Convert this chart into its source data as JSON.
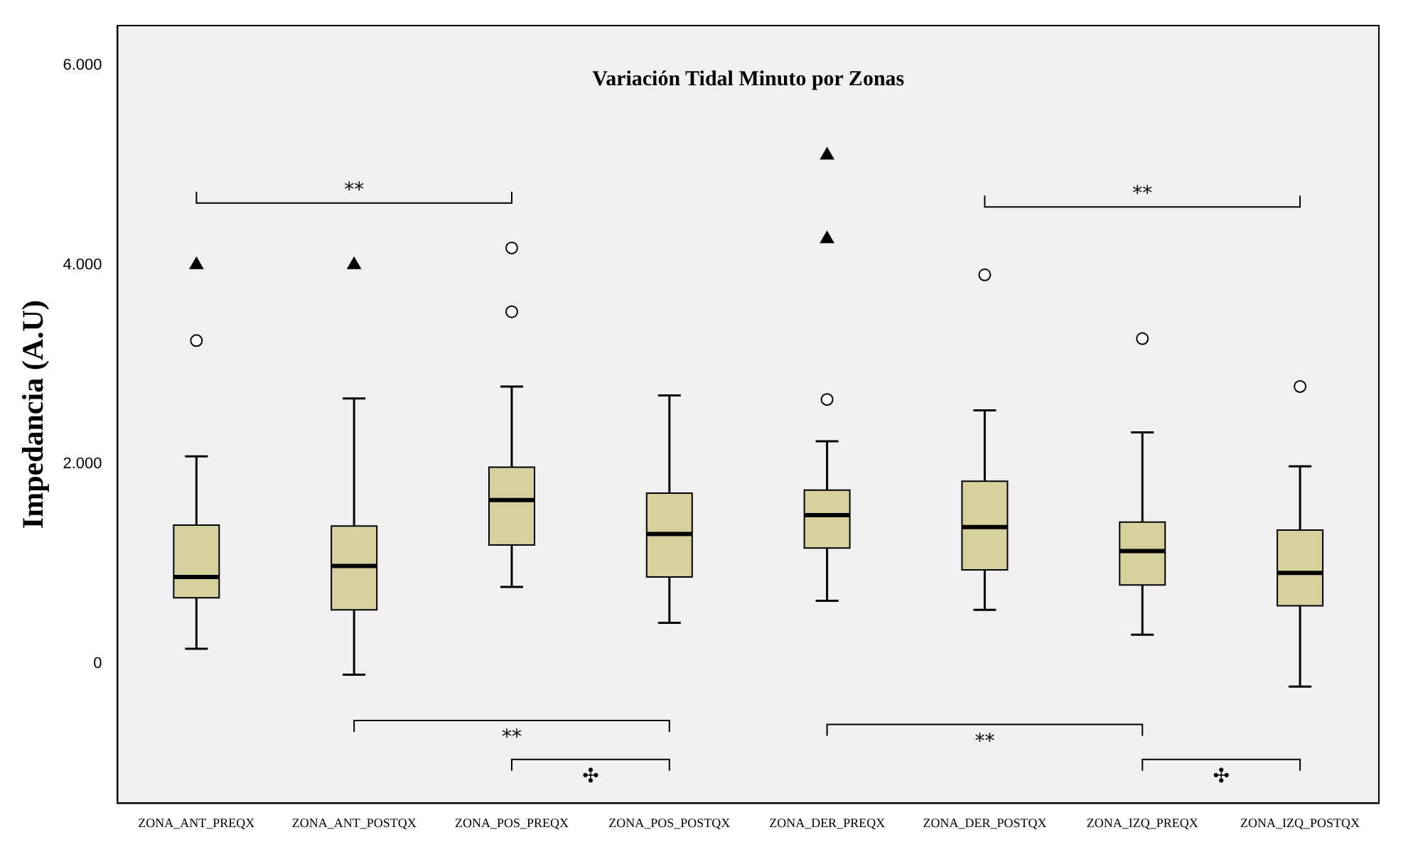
{
  "chart_data": {
    "type": "box",
    "title": "Variación Tidal Minuto por Zonas",
    "ylabel": "Impedancia (A.U)",
    "categories": [
      "ZONA_ANT_PREQX",
      "ZONA_ANT_POSTQX",
      "ZONA_POS_PREQX",
      "ZONA_POS_POSTQX",
      "ZONA_DER_PREQX",
      "ZONA_DER_POSTQX",
      "ZONA_IZQ_PREQX",
      "ZONA_IZQ_POSTQX"
    ],
    "ylim": [
      -1400,
      6400
    ],
    "yticks": [
      0,
      {
        "value": 2000,
        "label": "2.000"
      },
      {
        "value": 4000,
        "label": "4.000"
      },
      {
        "value": 6000,
        "label": "6.000"
      }
    ],
    "series": [
      {
        "color": "#d8d09c",
        "boxes": [
          {
            "low": 150,
            "q1": 660,
            "median": 870,
            "q3": 1390,
            "high": 2080,
            "outliers": [
              3240
            ]
          },
          {
            "low": -110,
            "q1": 540,
            "median": 980,
            "q3": 1380,
            "high": 2660
          },
          {
            "low": 770,
            "q1": 1190,
            "median": 1640,
            "q3": 1970,
            "high": 2780,
            "outliers": [
              3530,
              4170
            ]
          },
          {
            "low": 410,
            "q1": 870,
            "median": 1300,
            "q3": 1710,
            "high": 2690
          },
          {
            "low": 630,
            "q1": 1160,
            "median": 1490,
            "q3": 1740,
            "high": 2230,
            "outliers": [
              2650
            ]
          },
          {
            "low": 540,
            "q1": 940,
            "median": 1370,
            "q3": 1830,
            "high": 2540,
            "outliers": [
              3900
            ]
          },
          {
            "low": 290,
            "q1": 790,
            "median": 1130,
            "q3": 1420,
            "high": 2320,
            "outliers": [
              3260
            ]
          },
          {
            "low": -230,
            "q1": 580,
            "median": 910,
            "q3": 1340,
            "high": 1980,
            "outliers": [
              2780
            ]
          }
        ]
      },
      {
        "type": "scatter",
        "marker": "triangle",
        "color": "#000000",
        "x": [
          "ZONA_ANT_PREQX",
          "ZONA_ANT_POSTQX",
          "ZONA_DER_PREQX",
          "ZONA_DER_PREQX"
        ],
        "values": [
          4000,
          4000,
          4260,
          5100
        ]
      }
    ],
    "annotations": [
      "**",
      "**",
      "**",
      "✣",
      "**",
      "✣"
    ],
    "grid": false,
    "legend": false
  }
}
